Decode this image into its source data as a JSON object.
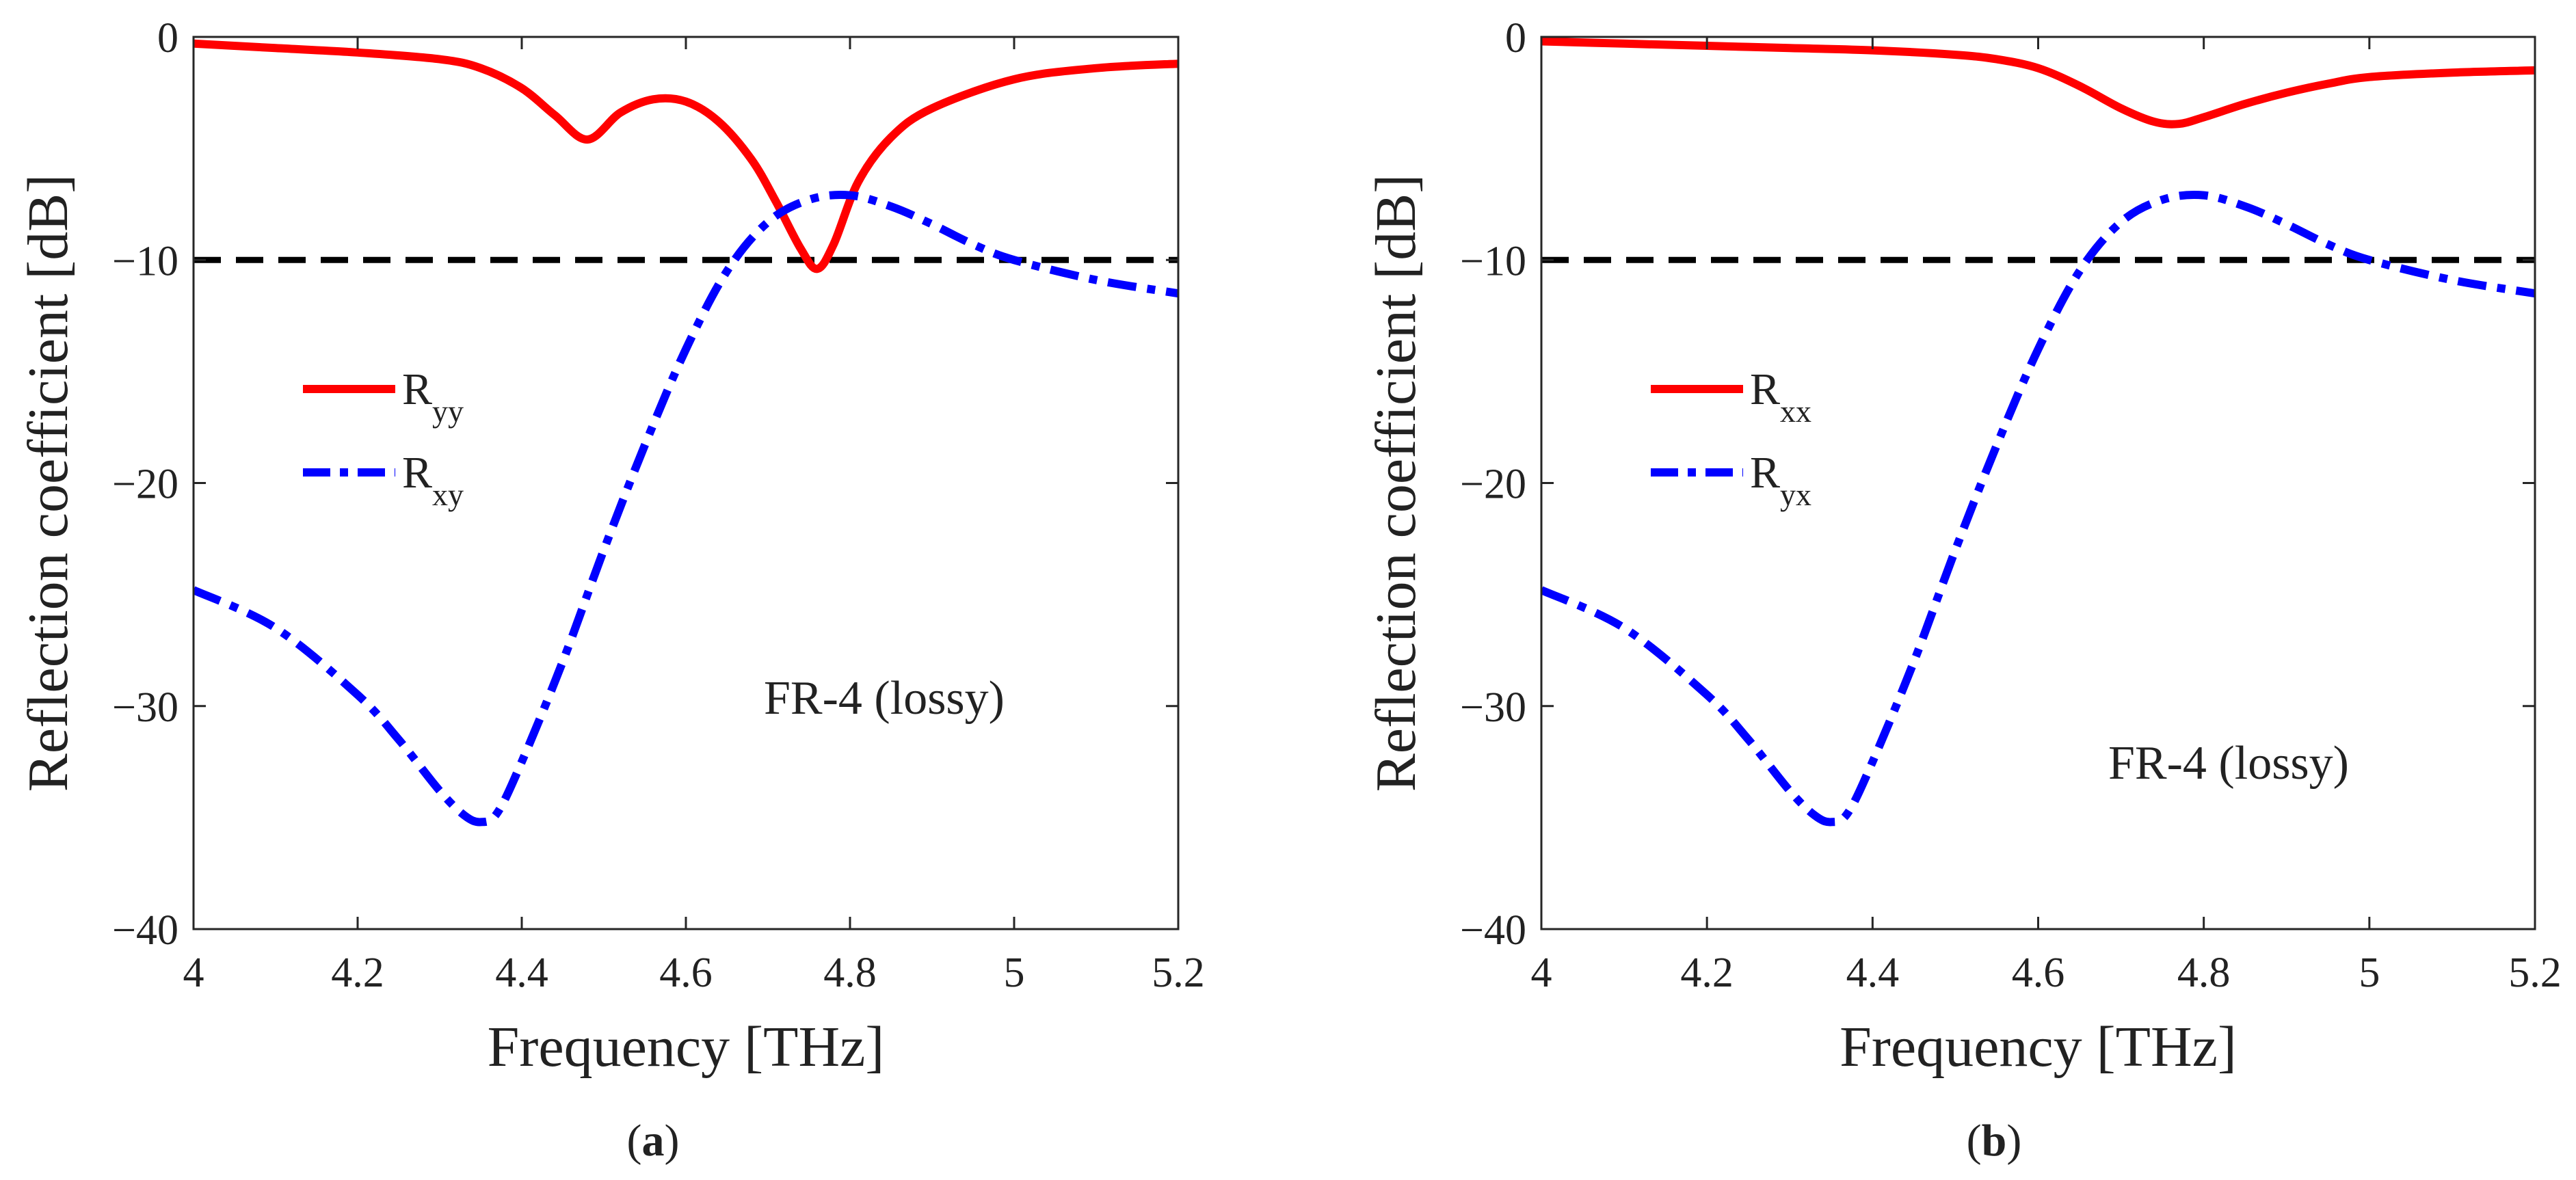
{
  "chart_data": [
    {
      "type": "line",
      "panel_label": {
        "open": "(",
        "letter": "a",
        "close": ")"
      },
      "xlabel": "Frequency [THz]",
      "ylabel": "Reflection coefficient [dB]",
      "xlim": [
        4,
        5.2
      ],
      "ylim": [
        -40,
        0
      ],
      "xticks": [
        4,
        4.2,
        4.4,
        4.6,
        4.8,
        5,
        5.2
      ],
      "xtick_labels": [
        "4",
        "4.2",
        "4.4",
        "4.6",
        "4.8",
        "5",
        "5.2"
      ],
      "yticks": [
        0,
        -10,
        -20,
        -30,
        -40
      ],
      "ytick_labels": [
        "0",
        "−10",
        "−20",
        "−30",
        "−40"
      ],
      "threshold": {
        "y": -10,
        "color": "#000000",
        "style": "dashed"
      },
      "annotation": "FR-4 (lossy)",
      "legend_position": "center-left",
      "series": [
        {
          "name": "R",
          "sub": "yy",
          "color": "#ff0000",
          "style": "solid",
          "x": [
            4.0,
            4.1,
            4.2,
            4.3,
            4.35,
            4.4,
            4.44,
            4.48,
            4.52,
            4.56,
            4.6,
            4.64,
            4.68,
            4.71,
            4.74,
            4.76,
            4.78,
            4.81,
            4.85,
            4.9,
            5.0,
            5.1,
            5.2
          ],
          "y": [
            -0.3,
            -0.5,
            -0.7,
            -1.0,
            -1.4,
            -2.3,
            -3.5,
            -4.6,
            -3.4,
            -2.8,
            -2.9,
            -3.8,
            -5.5,
            -7.4,
            -9.5,
            -10.4,
            -9.3,
            -6.5,
            -4.5,
            -3.2,
            -1.9,
            -1.4,
            -1.2
          ]
        },
        {
          "name": "R",
          "sub": "xy",
          "color": "#0000ff",
          "style": "dashdot",
          "x": [
            4.0,
            4.1,
            4.2,
            4.25,
            4.3,
            4.33,
            4.35,
            4.37,
            4.4,
            4.45,
            4.5,
            4.55,
            4.6,
            4.65,
            4.7,
            4.75,
            4.8,
            4.85,
            4.9,
            4.95,
            5.0,
            5.1,
            5.2
          ],
          "y": [
            -24.8,
            -26.5,
            -29.5,
            -31.5,
            -33.8,
            -34.9,
            -35.2,
            -34.8,
            -32.5,
            -28.0,
            -23.0,
            -18.3,
            -14.0,
            -10.5,
            -8.3,
            -7.3,
            -7.1,
            -7.6,
            -8.4,
            -9.3,
            -10.0,
            -10.9,
            -11.5
          ]
        }
      ]
    },
    {
      "type": "line",
      "panel_label": {
        "open": "(",
        "letter": "b",
        "close": ")"
      },
      "xlabel": "Frequency [THz]",
      "ylabel": "Reflection coefficient [dB]",
      "xlim": [
        4,
        5.2
      ],
      "ylim": [
        -40,
        0
      ],
      "xticks": [
        4,
        4.2,
        4.4,
        4.6,
        4.8,
        5,
        5.2
      ],
      "xtick_labels": [
        "4",
        "4.2",
        "4.4",
        "4.6",
        "4.8",
        "5",
        "5.2"
      ],
      "yticks": [
        0,
        -10,
        -20,
        -30,
        -40
      ],
      "ytick_labels": [
        "0",
        "−10",
        "−20",
        "−30",
        "−40"
      ],
      "threshold": {
        "y": -10,
        "color": "#000000",
        "style": "dashed"
      },
      "annotation": "FR-4 (lossy)",
      "legend_position": "center-left",
      "series": [
        {
          "name": "R",
          "sub": "xx",
          "color": "#ff0000",
          "style": "solid",
          "x": [
            4.0,
            4.1,
            4.2,
            4.3,
            4.4,
            4.5,
            4.55,
            4.6,
            4.65,
            4.7,
            4.74,
            4.77,
            4.8,
            4.85,
            4.9,
            4.95,
            5.0,
            5.1,
            5.2
          ],
          "y": [
            -0.2,
            -0.3,
            -0.4,
            -0.5,
            -0.6,
            -0.8,
            -1.0,
            -1.4,
            -2.2,
            -3.2,
            -3.8,
            -3.9,
            -3.6,
            -3.0,
            -2.5,
            -2.1,
            -1.8,
            -1.6,
            -1.5
          ]
        },
        {
          "name": "R",
          "sub": "yx",
          "color": "#0000ff",
          "style": "dashdot",
          "x": [
            4.0,
            4.1,
            4.2,
            4.25,
            4.3,
            4.33,
            4.35,
            4.37,
            4.4,
            4.45,
            4.5,
            4.55,
            4.6,
            4.65,
            4.7,
            4.75,
            4.8,
            4.85,
            4.9,
            4.95,
            5.0,
            5.1,
            5.2
          ],
          "y": [
            -24.8,
            -26.5,
            -29.5,
            -31.5,
            -33.8,
            -34.9,
            -35.2,
            -34.8,
            -32.5,
            -28.0,
            -23.0,
            -18.3,
            -14.0,
            -10.5,
            -8.3,
            -7.3,
            -7.1,
            -7.6,
            -8.4,
            -9.3,
            -10.0,
            -10.9,
            -11.5
          ]
        }
      ]
    }
  ]
}
